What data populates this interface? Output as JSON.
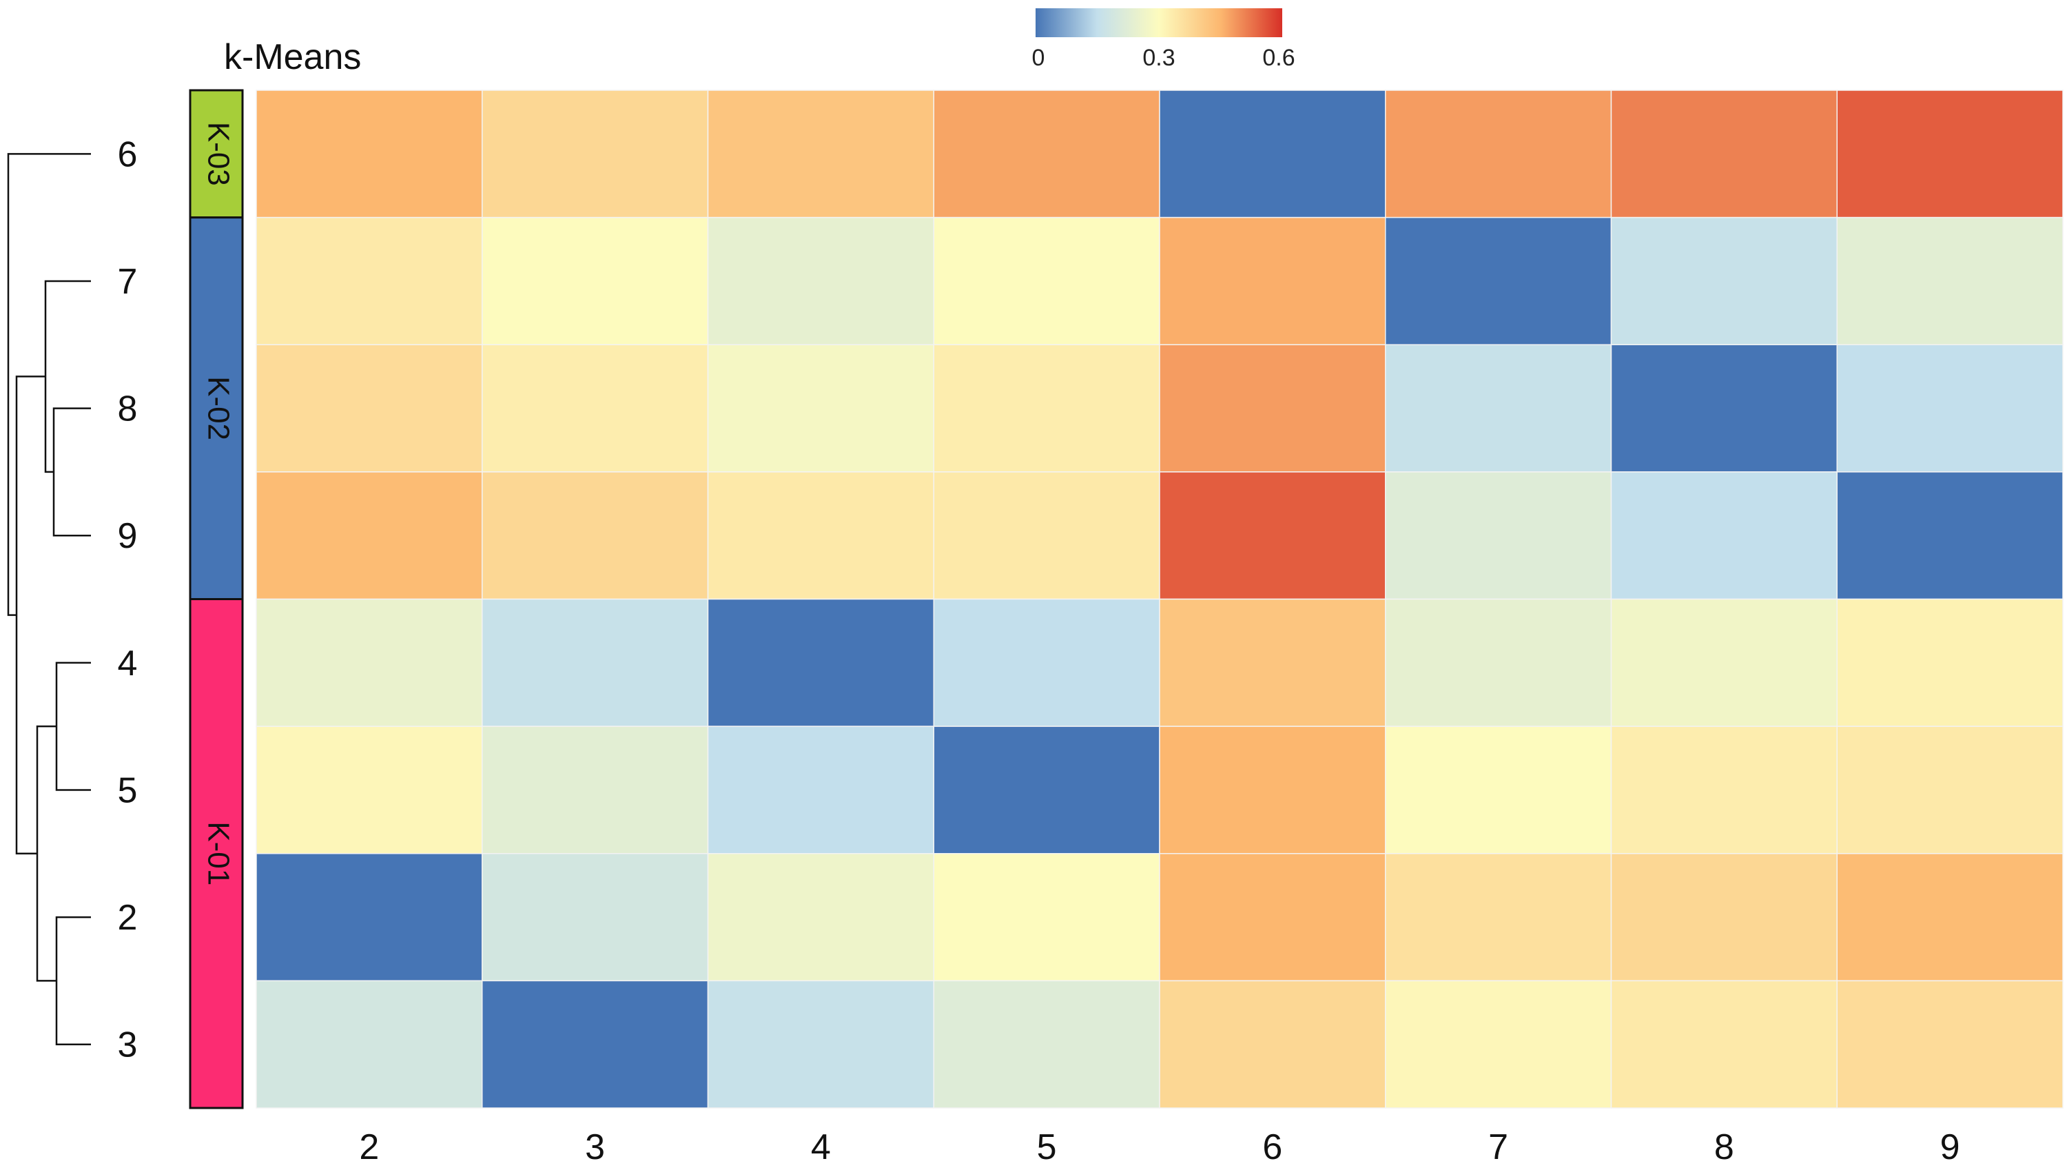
{
  "chart_data": {
    "type": "heatmap",
    "title": "k-Means",
    "columns": [
      "2",
      "3",
      "4",
      "5",
      "6",
      "7",
      "8",
      "9"
    ],
    "rows": [
      "6",
      "7",
      "8",
      "9",
      "4",
      "5",
      "2",
      "3"
    ],
    "values": [
      [
        0.45,
        0.38,
        0.42,
        0.47,
        0.0,
        0.48,
        0.51,
        0.55
      ],
      [
        0.34,
        0.3,
        0.24,
        0.3,
        0.46,
        0.0,
        0.16,
        0.23
      ],
      [
        0.37,
        0.33,
        0.28,
        0.33,
        0.48,
        0.16,
        0.0,
        0.15
      ],
      [
        0.44,
        0.38,
        0.34,
        0.34,
        0.55,
        0.22,
        0.15,
        0.0
      ],
      [
        0.25,
        0.16,
        0.0,
        0.15,
        0.42,
        0.24,
        0.27,
        0.32
      ],
      [
        0.31,
        0.23,
        0.15,
        0.0,
        0.45,
        0.3,
        0.33,
        0.34
      ],
      [
        0.0,
        0.19,
        0.26,
        0.3,
        0.45,
        0.36,
        0.38,
        0.44
      ],
      [
        0.19,
        0.0,
        0.16,
        0.22,
        0.38,
        0.31,
        0.34,
        0.37
      ]
    ],
    "clusters": [
      {
        "label": "K-03",
        "rows": [
          "6"
        ],
        "color": "#a6ce39"
      },
      {
        "label": "K-02",
        "rows": [
          "7",
          "8",
          "9"
        ],
        "color": "#4675b5"
      },
      {
        "label": "K-01",
        "rows": [
          "4",
          "5",
          "2",
          "3"
        ],
        "color": "#fc2c72"
      }
    ],
    "color_scale": {
      "min": 0,
      "mid": 0.3,
      "max": 0.6,
      "tick_labels": [
        "0",
        "0.3",
        "0.6"
      ],
      "stops": [
        "#4675b5",
        "#c3dfec",
        "#fdfbbe",
        "#fcb76f",
        "#d73027"
      ]
    },
    "dendrogram": {
      "leaves": [
        "6",
        "7",
        "8",
        "9",
        "4",
        "5",
        "2",
        "3"
      ],
      "merges": [
        [
          "8",
          "9"
        ],
        [
          "7",
          "8+9"
        ],
        [
          "4",
          "5"
        ],
        [
          "2",
          "3"
        ],
        [
          "4+5",
          "2+3"
        ],
        [
          "7+8+9",
          "4+5+2+3"
        ],
        [
          "6",
          "rest"
        ]
      ]
    }
  }
}
